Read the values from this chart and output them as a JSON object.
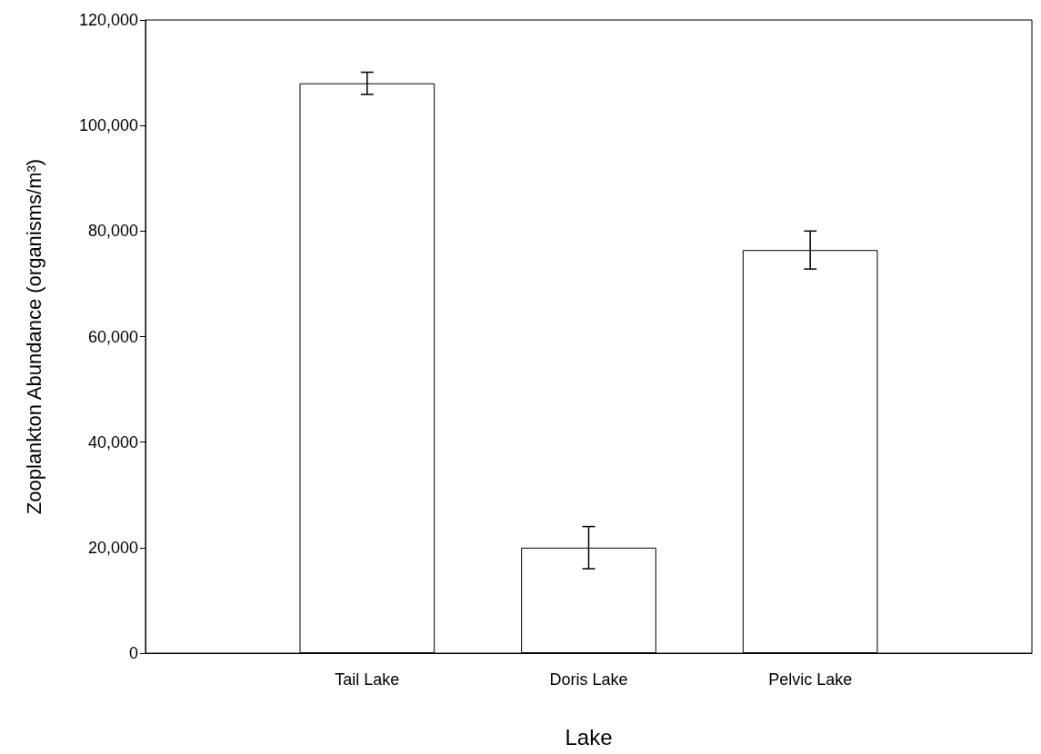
{
  "chart_data": {
    "type": "bar",
    "xlabel": "Lake",
    "ylabel": "Zooplankton Abundance (organisms/m³)",
    "categories": [
      "Tail Lake",
      "Doris Lake",
      "Pelvic Lake"
    ],
    "values": [
      108000,
      20000,
      76400
    ],
    "errors": [
      2100,
      4000,
      3600
    ],
    "color": "#ffffff",
    "ylim": [
      0,
      120000
    ],
    "yticks": [
      0,
      {
        "value": 20000,
        "label": "20,000"
      },
      {
        "value": 40000,
        "label": "40,000"
      },
      {
        "value": 60000,
        "label": "60,000"
      },
      {
        "value": 80000,
        "label": "80,000"
      },
      {
        "value": 100000,
        "label": "100,000"
      },
      {
        "value": 120000,
        "label": "120,000"
      }
    ],
    "grid": false
  }
}
